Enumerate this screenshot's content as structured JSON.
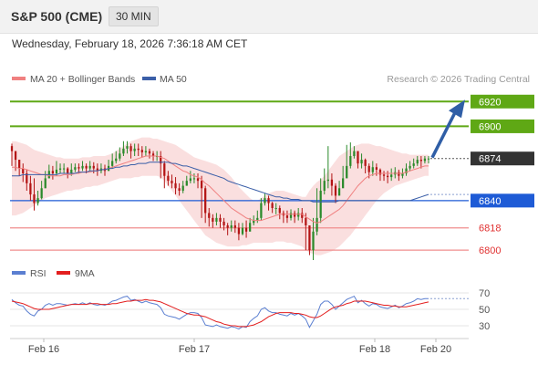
{
  "header": {
    "title": "S&P 500 (CME)",
    "timeframe": "30 MIN"
  },
  "date_line": "Wednesday, February 18, 2026 7:36:18 AM CET",
  "credit": "Research © 2026 Trading Central",
  "colors": {
    "bollinger": "#f3b8b8",
    "ma20": "#f08080",
    "ma50": "#3b5fa8",
    "resistance": "#5fa815",
    "support": "#1e5bd6",
    "weak_level": "#f08e8e",
    "last": "#333333",
    "rsi": "#5b7fd1",
    "rsi_ma": "#e31e1e",
    "bull": "#2a8a2a",
    "bear": "#b31414",
    "arrow": "#2f5ea6"
  },
  "chart_data": [
    {
      "type": "candlestick",
      "legend": [
        {
          "name": "MA 20 + Bollinger Bands",
          "color": "#f08080"
        },
        {
          "name": "MA 50",
          "color": "#3b5fa8"
        }
      ],
      "legend_position": "top-left",
      "x_ticks": [
        "Feb 16",
        "Feb 17",
        "Feb 18",
        "Feb 20"
      ],
      "ylim": [
        6792,
        6932
      ],
      "levels": [
        {
          "value": 6920,
          "label": "6920",
          "kind": "resistance"
        },
        {
          "value": 6900,
          "label": "6900",
          "kind": "resistance"
        },
        {
          "value": 6874,
          "label": "6874",
          "kind": "last"
        },
        {
          "value": 6840,
          "label": "6840",
          "kind": "support"
        },
        {
          "value": 6818,
          "label": "6818",
          "kind": "weak"
        },
        {
          "value": 6800,
          "label": "6800",
          "kind": "weak"
        }
      ],
      "arrow_target": 6920,
      "close": [
        6880,
        6873,
        6866,
        6862,
        6854,
        6845,
        6838,
        6842,
        6850,
        6858,
        6864,
        6862,
        6865,
        6866,
        6866,
        6862,
        6865,
        6867,
        6866,
        6868,
        6866,
        6868,
        6866,
        6864,
        6866,
        6864,
        6868,
        6872,
        6874,
        6878,
        6882,
        6884,
        6880,
        6882,
        6881,
        6879,
        6880,
        6878,
        6876,
        6876,
        6870,
        6860,
        6856,
        6854,
        6850,
        6848,
        6852,
        6856,
        6858,
        6858,
        6856,
        6850,
        6830,
        6826,
        6823,
        6826,
        6823,
        6820,
        6818,
        6820,
        6818,
        6813,
        6818,
        6815,
        6822,
        6824,
        6826,
        6838,
        6842,
        6838,
        6834,
        6834,
        6830,
        6828,
        6826,
        6830,
        6827,
        6830,
        6826,
        6820,
        6800,
        6815,
        6826,
        6848,
        6856,
        6857,
        6852,
        6844,
        6850,
        6858,
        6868,
        6876,
        6880,
        6870,
        6873,
        6868,
        6863,
        6867,
        6865,
        6861,
        6860,
        6859,
        6861,
        6863,
        6860,
        6862,
        6866,
        6868,
        6870,
        6873,
        6872,
        6874,
        6874
      ],
      "high": [
        6886,
        6880,
        6873,
        6870,
        6865,
        6860,
        6858,
        6848,
        6856,
        6864,
        6869,
        6868,
        6872,
        6870,
        6870,
        6867,
        6870,
        6870,
        6870,
        6872,
        6870,
        6872,
        6871,
        6870,
        6870,
        6869,
        6873,
        6878,
        6880,
        6883,
        6888,
        6888,
        6886,
        6886,
        6886,
        6884,
        6884,
        6882,
        6880,
        6880,
        6880,
        6872,
        6864,
        6861,
        6859,
        6854,
        6856,
        6860,
        6864,
        6862,
        6862,
        6860,
        6852,
        6834,
        6829,
        6830,
        6829,
        6826,
        6822,
        6824,
        6824,
        6822,
        6822,
        6824,
        6826,
        6828,
        6832,
        6842,
        6846,
        6844,
        6839,
        6838,
        6836,
        6832,
        6832,
        6833,
        6832,
        6834,
        6834,
        6830,
        6820,
        6826,
        6850,
        6858,
        6866,
        6884,
        6862,
        6854,
        6856,
        6868,
        6885,
        6887,
        6884,
        6880,
        6878,
        6874,
        6870,
        6872,
        6870,
        6866,
        6864,
        6864,
        6866,
        6867,
        6865,
        6866,
        6870,
        6872,
        6874,
        6876,
        6876,
        6876,
        6876
      ],
      "low": [
        6868,
        6864,
        6860,
        6855,
        6848,
        6840,
        6832,
        6836,
        6841,
        6850,
        6858,
        6857,
        6860,
        6862,
        6862,
        6858,
        6860,
        6863,
        6862,
        6864,
        6862,
        6864,
        6862,
        6860,
        6862,
        6860,
        6864,
        6866,
        6870,
        6872,
        6876,
        6878,
        6874,
        6876,
        6876,
        6875,
        6876,
        6874,
        6872,
        6872,
        6858,
        6850,
        6852,
        6850,
        6845,
        6844,
        6846,
        6852,
        6854,
        6854,
        6850,
        6826,
        6822,
        6819,
        6818,
        6820,
        6818,
        6816,
        6812,
        6815,
        6814,
        6808,
        6812,
        6810,
        6816,
        6820,
        6822,
        6824,
        6836,
        6832,
        6830,
        6829,
        6825,
        6822,
        6822,
        6824,
        6822,
        6824,
        6822,
        6800,
        6796,
        6792,
        6812,
        6822,
        6845,
        6850,
        6844,
        6838,
        6846,
        6852,
        6860,
        6866,
        6874,
        6866,
        6866,
        6862,
        6858,
        6860,
        6860,
        6856,
        6856,
        6854,
        6856,
        6858,
        6856,
        6858,
        6860,
        6864,
        6866,
        6868,
        6866,
        6870,
        6870
      ]
    },
    {
      "type": "line",
      "legend": [
        {
          "name": "RSI",
          "color": "#5b7fd1"
        },
        {
          "name": "9MA",
          "color": "#e31e1e"
        }
      ],
      "y_ticks": [
        70,
        50,
        30
      ],
      "ylim": [
        20,
        80
      ],
      "series": [
        {
          "name": "RSI",
          "values": [
            62,
            58,
            55,
            54,
            48,
            44,
            42,
            48,
            50,
            55,
            57,
            55,
            57,
            57,
            56,
            55,
            56,
            57,
            56,
            58,
            56,
            58,
            56,
            55,
            56,
            55,
            57,
            60,
            61,
            63,
            65,
            66,
            61,
            62,
            60,
            58,
            60,
            58,
            57,
            56,
            52,
            44,
            42,
            41,
            40,
            38,
            41,
            44,
            46,
            46,
            45,
            40,
            31,
            30,
            29,
            31,
            29,
            28,
            27,
            29,
            28,
            26,
            29,
            28,
            35,
            39,
            42,
            50,
            52,
            48,
            46,
            46,
            44,
            43,
            42,
            45,
            43,
            45,
            42,
            38,
            28,
            36,
            44,
            56,
            60,
            60,
            56,
            50,
            54,
            58,
            62,
            64,
            66,
            58,
            61,
            57,
            54,
            57,
            56,
            53,
            52,
            51,
            53,
            55,
            52,
            54,
            57,
            58,
            60,
            63,
            62,
            63,
            63
          ]
        },
        {
          "name": "9MA",
          "values": [
            60,
            59,
            58,
            57,
            55,
            53,
            51,
            50,
            50,
            50,
            50,
            51,
            52,
            53,
            54,
            55,
            56,
            56,
            56,
            56,
            56,
            57,
            57,
            57,
            56,
            56,
            56,
            57,
            57,
            58,
            59,
            60,
            60,
            61,
            61,
            61,
            62,
            61,
            61,
            60,
            59,
            57,
            55,
            53,
            51,
            49,
            47,
            45,
            44,
            43,
            43,
            42,
            41,
            39,
            37,
            35,
            34,
            32,
            31,
            30,
            30,
            29,
            29,
            29,
            30,
            31,
            33,
            35,
            38,
            41,
            43,
            45,
            46,
            46,
            46,
            46,
            45,
            45,
            44,
            43,
            41,
            40,
            40,
            42,
            45,
            48,
            51,
            53,
            54,
            55,
            57,
            58,
            60,
            60,
            60,
            60,
            59,
            58,
            57,
            56,
            55,
            55,
            54,
            54,
            53,
            53,
            53,
            54,
            55,
            56,
            57,
            58,
            59
          ]
        }
      ]
    }
  ],
  "bollinger_ma20": [
    6867,
    6867,
    6866,
    6866,
    6865,
    6864,
    6863,
    6862,
    6861,
    6861,
    6860,
    6860,
    6860,
    6860,
    6861,
    6861,
    6861,
    6862,
    6862,
    6863,
    6863,
    6863,
    6864,
    6864,
    6865,
    6865,
    6866,
    6867,
    6868,
    6869,
    6870,
    6871,
    6872,
    6873,
    6874,
    6875,
    6876,
    6876,
    6876,
    6876,
    6875,
    6874,
    6872,
    6870,
    6868,
    6866,
    6864,
    6863,
    6861,
    6860,
    6859,
    6857,
    6854,
    6852,
    6849,
    6846,
    6843,
    6840,
    6837,
    6834,
    6832,
    6830,
    6828,
    6826,
    6825,
    6824,
    6824,
    6824,
    6825,
    6826,
    6827,
    6828,
    6829,
    6829,
    6829,
    6829,
    6829,
    6829,
    6829,
    6827,
    6825,
    6823,
    6822,
    6823,
    6825,
    6827,
    6829,
    6831,
    6833,
    6836,
    6840,
    6844,
    6848,
    6852,
    6855,
    6858,
    6860,
    6861,
    6862,
    6862,
    6862,
    6862,
    6862,
    6862,
    6862,
    6862,
    6863,
    6864,
    6865,
    6866,
    6867,
    6868,
    6868
  ],
  "bollinger_upper": [
    6888,
    6888,
    6887,
    6886,
    6885,
    6883,
    6881,
    6880,
    6879,
    6878,
    6877,
    6876,
    6875,
    6875,
    6874,
    6874,
    6874,
    6874,
    6874,
    6875,
    6875,
    6875,
    6876,
    6876,
    6876,
    6876,
    6877,
    6878,
    6880,
    6882,
    6884,
    6886,
    6888,
    6889,
    6890,
    6891,
    6891,
    6891,
    6890,
    6890,
    6889,
    6888,
    6887,
    6886,
    6885,
    6883,
    6881,
    6879,
    6877,
    6875,
    6874,
    6873,
    6872,
    6871,
    6870,
    6869,
    6867,
    6865,
    6862,
    6859,
    6855,
    6851,
    6848,
    6845,
    6842,
    6840,
    6840,
    6842,
    6844,
    6846,
    6847,
    6848,
    6848,
    6848,
    6847,
    6846,
    6845,
    6844,
    6843,
    6843,
    6848,
    6852,
    6855,
    6857,
    6860,
    6864,
    6868,
    6872,
    6876,
    6878,
    6880,
    6882,
    6884,
    6885,
    6886,
    6886,
    6886,
    6885,
    6884,
    6884,
    6883,
    6882,
    6881,
    6880,
    6879,
    6878,
    6878,
    6877,
    6877,
    6877,
    6877,
    6877,
    6877
  ],
  "bollinger_lower": [
    6828,
    6828,
    6829,
    6830,
    6832,
    6834,
    6836,
    6838,
    6840,
    6842,
    6843,
    6844,
    6845,
    6846,
    6847,
    6848,
    6848,
    6849,
    6849,
    6850,
    6851,
    6851,
    6852,
    6852,
    6853,
    6854,
    6855,
    6856,
    6857,
    6858,
    6858,
    6858,
    6858,
    6859,
    6859,
    6860,
    6860,
    6860,
    6860,
    6860,
    6859,
    6856,
    6852,
    6848,
    6844,
    6840,
    6836,
    6832,
    6828,
    6824,
    6820,
    6816,
    6812,
    6810,
    6808,
    6806,
    6805,
    6804,
    6803,
    6803,
    6803,
    6803,
    6804,
    6804,
    6805,
    6806,
    6806,
    6806,
    6806,
    6806,
    6806,
    6807,
    6807,
    6807,
    6806,
    6806,
    6805,
    6804,
    6803,
    6800,
    6798,
    6797,
    6796,
    6796,
    6797,
    6798,
    6799,
    6801,
    6803,
    6806,
    6809,
    6812,
    6816,
    6820,
    6824,
    6828,
    6832,
    6836,
    6840,
    6843,
    6846,
    6848,
    6850,
    6852,
    6853,
    6854,
    6855,
    6856,
    6857,
    6858,
    6859,
    6860,
    6860
  ],
  "ma50": [
    6860,
    6860,
    6860,
    6861,
    6861,
    6861,
    6861,
    6861,
    6861,
    6861,
    6861,
    6861,
    6861,
    6862,
    6862,
    6862,
    6862,
    6862,
    6863,
    6863,
    6863,
    6864,
    6864,
    6864,
    6865,
    6865,
    6866,
    6866,
    6867,
    6867,
    6868,
    6868,
    6869,
    6869,
    6870,
    6870,
    6870,
    6871,
    6871,
    6871,
    6871,
    6871,
    6871,
    6870,
    6870,
    6869,
    6868,
    6868,
    6867,
    6866,
    6865,
    6864,
    6863,
    6862,
    6861,
    6860,
    6859,
    6858,
    6856,
    6855,
    6854,
    6853,
    6852,
    6851,
    6850,
    6849,
    6848,
    6847,
    6846,
    6845,
    6844,
    6843,
    6843,
    6842,
    6842,
    6841,
    6841,
    6841,
    6840,
    6840,
    6840,
    6839,
    6839,
    6839,
    6839,
    6839,
    6839,
    6839,
    6840,
    6840,
    6840,
    6840,
    6840,
    6840,
    6840,
    6840,
    6840,
    6840,
    6840,
    6840,
    6840,
    6840,
    6840,
    6840,
    6840,
    6840,
    6840,
    6840,
    6841,
    6842,
    6843,
    6844,
    6845
  ]
}
